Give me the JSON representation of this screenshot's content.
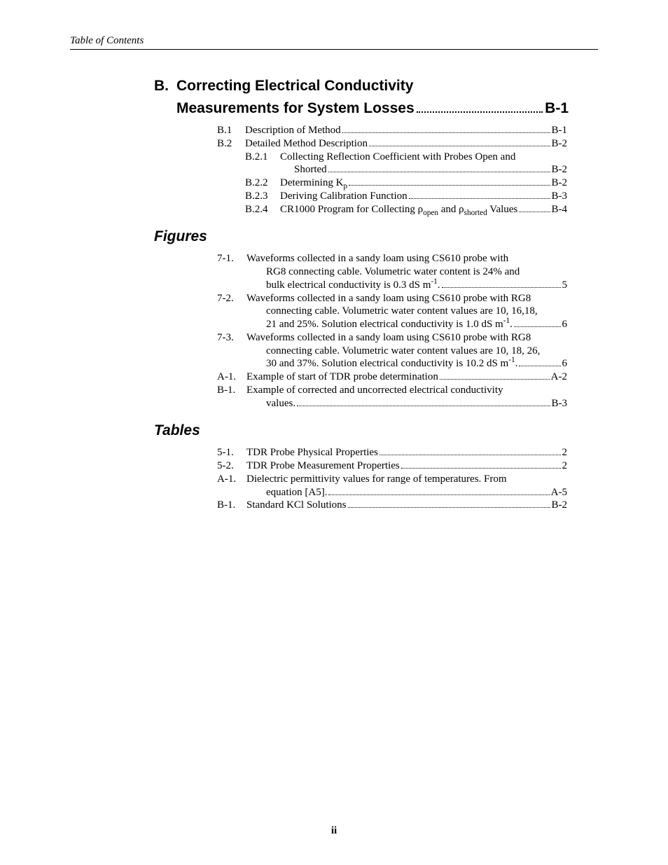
{
  "running_header": "Table of Contents",
  "appendix": {
    "letter": "B.",
    "title_l1": "Correcting Electrical Conductivity",
    "title_l2": "Measurements for System Losses",
    "page": "B-1"
  },
  "toc": [
    {
      "num": "B.1",
      "text": "Description of Method",
      "page": "B-1"
    },
    {
      "num": "B.2",
      "text": "Detailed Method Description",
      "page": "B-2"
    }
  ],
  "sub": [
    {
      "num": "B.2.1",
      "text": "Collecting Reflection Coefficient with Probes Open and",
      "cont": "Shorted",
      "page": "B-2"
    },
    {
      "num": "B.2.2",
      "text_html": "Determining K<sub>p</sub>",
      "page": "B-2"
    },
    {
      "num": "B.2.3",
      "text": "Deriving Calibration Function",
      "page": "B-3"
    },
    {
      "num": "B.2.4",
      "text_html": "CR1000 Program for Collecting ρ<sub>open</sub> and ρ<sub>shorted</sub> Values",
      "page": "B-4"
    }
  ],
  "figures_head": "Figures",
  "figures": [
    {
      "num": "7-1.",
      "lines": [
        "Waveforms collected in a sandy loam using CS610 probe with",
        "RG8 connecting cable.  Volumetric water content is 24% and"
      ],
      "last_html": "bulk electrical conductivity is 0.3 dS m<sup>-1</sup>.",
      "page": "5"
    },
    {
      "num": "7-2.",
      "lines": [
        "Waveforms collected in a sandy loam using CS610 probe with RG8",
        "connecting cable.  Volumetric water content values are 10, 16,18,"
      ],
      "last_html": "21 and 25%.  Solution electrical conductivity is 1.0 dS m<sup>-1</sup>.",
      "page": "6"
    },
    {
      "num": "7-3.",
      "lines": [
        "Waveforms collected in a sandy loam using CS610 probe with RG8",
        "connecting cable.  Volumetric water content values are 10, 18, 26,"
      ],
      "last_html": "30 and 37%.  Solution electrical conductivity is 10.2 dS m<sup>-1</sup>.",
      "page": "6"
    },
    {
      "num": "A-1.",
      "lines": [],
      "last_html": "Example of start of TDR probe determination",
      "page": "A-2"
    },
    {
      "num": "B-1.",
      "lines": [
        "Example of corrected and uncorrected electrical conductivity"
      ],
      "last_html": "values.",
      "page": "B-3"
    }
  ],
  "tables_head": "Tables",
  "tables": [
    {
      "num": "5-1.",
      "text": "TDR Probe Physical Properties",
      "page": "2"
    },
    {
      "num": "5-2.",
      "text": "TDR Probe Measurement Properties",
      "page": "2"
    },
    {
      "num": "A-1.",
      "text": "Dielectric permittivity values for range of temperatures. From",
      "cont": "equation [A5].",
      "page": "A-5"
    },
    {
      "num": "B-1.",
      "text": "Standard KCl Solutions",
      "page": "B-2"
    }
  ],
  "page_number": "ii"
}
